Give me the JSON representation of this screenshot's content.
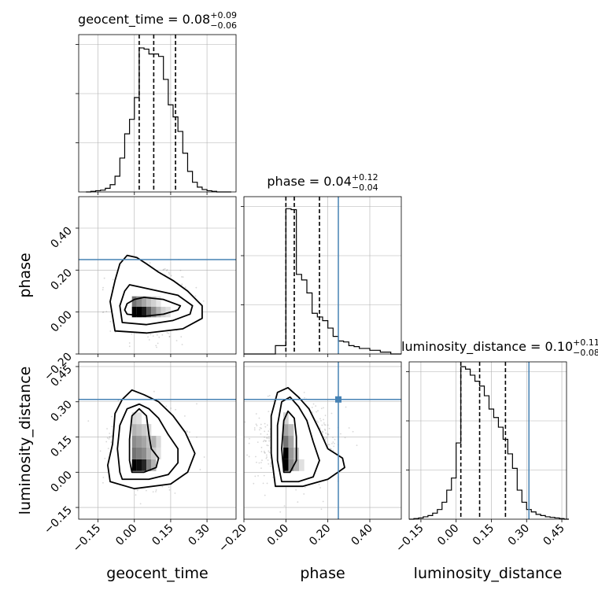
{
  "chart_data": {
    "type": "corner",
    "parameters": [
      "geocent_time",
      "phase",
      "luminosity_distance"
    ],
    "truth_color": "#4682b4",
    "marginals": [
      {
        "parameter": "geocent_time",
        "title_name": "geocent_time",
        "title_value": "0.08",
        "title_plus": "+0.09",
        "title_minus": "−0.06",
        "quantiles": [
          0.02,
          0.08,
          0.17
        ],
        "truth": null,
        "bin_edges": [
          -0.2,
          -0.18,
          -0.16,
          -0.14,
          -0.12,
          -0.1,
          -0.08,
          -0.06,
          -0.04,
          -0.02,
          0.0,
          0.02,
          0.04,
          0.06,
          0.08,
          0.1,
          0.12,
          0.14,
          0.16,
          0.18,
          0.2,
          0.22,
          0.24,
          0.26,
          0.28,
          0.3,
          0.32,
          0.34,
          0.36,
          0.38,
          0.4
        ],
        "counts": [
          0,
          0.5,
          1,
          1.5,
          3,
          6,
          13,
          28,
          48,
          60,
          78,
          119,
          118,
          114,
          114,
          112,
          93,
          72,
          62,
          50,
          32,
          17,
          8,
          4,
          2,
          1,
          0.5,
          0,
          0,
          0
        ],
        "ylim": [
          0,
          130
        ],
        "xlim": [
          -0.23,
          0.42
        ],
        "xticks": [
          -0.15,
          0.0,
          0.15,
          0.3
        ]
      },
      {
        "parameter": "phase",
        "title_name": "phase",
        "title_value": "0.04",
        "title_plus": "+0.12",
        "title_minus": "−0.04",
        "quantiles": [
          0.0,
          0.04,
          0.16
        ],
        "truth": 0.25,
        "bin_edges": [
          -0.2,
          -0.15,
          -0.1,
          -0.05,
          0.0,
          0.025,
          0.05,
          0.075,
          0.1,
          0.125,
          0.15,
          0.175,
          0.2,
          0.225,
          0.25,
          0.275,
          0.3,
          0.325,
          0.35,
          0.4,
          0.45,
          0.5,
          0.55
        ],
        "counts": [
          0,
          0,
          0,
          9,
          157,
          156,
          86,
          80,
          66,
          44,
          40,
          36,
          28,
          19,
          14,
          13,
          9,
          8,
          6,
          4,
          2,
          0
        ],
        "ylim": [
          0,
          170
        ],
        "xlim": [
          -0.2,
          0.55
        ],
        "xticks": [
          -0.2,
          0.0,
          0.2,
          0.4
        ]
      },
      {
        "parameter": "luminosity_distance",
        "title_name": "luminosity_distance",
        "title_value": "0.10",
        "title_plus": "+0.11",
        "title_minus": "−0.08",
        "quantiles": [
          0.02,
          0.1,
          0.21
        ],
        "truth": 0.31,
        "bin_edges": [
          -0.2,
          -0.18,
          -0.16,
          -0.14,
          -0.12,
          -0.1,
          -0.08,
          -0.06,
          -0.04,
          -0.02,
          0.0,
          0.02,
          0.04,
          0.06,
          0.08,
          0.1,
          0.12,
          0.14,
          0.16,
          0.18,
          0.2,
          0.22,
          0.24,
          0.26,
          0.28,
          0.3,
          0.32,
          0.34,
          0.36,
          0.38,
          0.4,
          0.42,
          0.44,
          0.46,
          0.48
        ],
        "counts": [
          0,
          0.5,
          1,
          2,
          3,
          5,
          8,
          14,
          24,
          34,
          63,
          126,
          124,
          119,
          114,
          110,
          102,
          91,
          84,
          76,
          66,
          54,
          42,
          24,
          14,
          8,
          6,
          4,
          3,
          2,
          1.5,
          1,
          0.5,
          0
        ],
        "ylim": [
          0,
          130
        ],
        "xlim": [
          -0.2,
          0.47
        ],
        "xticks": [
          -0.15,
          0.0,
          0.15,
          0.3,
          0.45
        ]
      }
    ],
    "joint": [
      {
        "x": "geocent_time",
        "y": "phase",
        "xlim": [
          -0.23,
          0.42
        ],
        "ylim": [
          -0.2,
          0.55
        ],
        "yticks": [
          -0.2,
          0.0,
          0.2,
          0.4
        ],
        "truth_y": 0.25,
        "contours": [
          [
            [
              -0.03,
              -0.01
            ],
            [
              0.04,
              -0.02
            ],
            [
              0.12,
              -0.01
            ],
            [
              0.18,
              0.01
            ],
            [
              0.19,
              0.03
            ],
            [
              0.12,
              0.06
            ],
            [
              0.04,
              0.07
            ],
            [
              0.0,
              0.06
            ],
            [
              -0.03,
              0.04
            ],
            [
              -0.04,
              0.01
            ]
          ],
          [
            [
              -0.05,
              -0.05
            ],
            [
              0.05,
              -0.06
            ],
            [
              0.16,
              -0.04
            ],
            [
              0.23,
              -0.01
            ],
            [
              0.24,
              0.03
            ],
            [
              0.18,
              0.08
            ],
            [
              0.1,
              0.1
            ],
            [
              0.02,
              0.12
            ],
            [
              -0.02,
              0.13
            ],
            [
              -0.04,
              0.1
            ],
            [
              -0.06,
              0.03
            ]
          ],
          [
            [
              -0.08,
              -0.09
            ],
            [
              0.05,
              -0.1
            ],
            [
              0.2,
              -0.08
            ],
            [
              0.28,
              -0.03
            ],
            [
              0.28,
              0.03
            ],
            [
              0.22,
              0.1
            ],
            [
              0.16,
              0.15
            ],
            [
              0.1,
              0.19
            ],
            [
              0.05,
              0.23
            ],
            [
              0.01,
              0.26
            ],
            [
              -0.03,
              0.27
            ],
            [
              -0.06,
              0.23
            ],
            [
              -0.08,
              0.15
            ],
            [
              -0.1,
              0.05
            ]
          ]
        ],
        "density": [
          {
            "x": 0.0,
            "y": 0.0,
            "v": 1.0
          },
          {
            "x": 0.02,
            "y": 0.0,
            "v": 1.0
          },
          {
            "x": 0.04,
            "y": 0.0,
            "v": 0.9
          },
          {
            "x": 0.06,
            "y": 0.0,
            "v": 0.65
          },
          {
            "x": 0.08,
            "y": 0.0,
            "v": 0.45
          },
          {
            "x": 0.1,
            "y": 0.0,
            "v": 0.3
          },
          {
            "x": 0.12,
            "y": 0.0,
            "v": 0.18
          },
          {
            "x": 0.14,
            "y": 0.0,
            "v": 0.12
          },
          {
            "x": 0.0,
            "y": 0.05,
            "v": 0.55
          },
          {
            "x": 0.02,
            "y": 0.05,
            "v": 0.45
          },
          {
            "x": 0.04,
            "y": 0.05,
            "v": 0.35
          },
          {
            "x": 0.06,
            "y": 0.05,
            "v": 0.25
          },
          {
            "x": 0.08,
            "y": 0.05,
            "v": 0.18
          },
          {
            "x": 0.1,
            "y": 0.05,
            "v": 0.1
          }
        ]
      },
      {
        "x": "geocent_time",
        "y": "luminosity_distance",
        "xlim": [
          -0.23,
          0.42
        ],
        "ylim": [
          -0.2,
          0.47
        ],
        "yticks": [
          -0.15,
          0.0,
          0.15,
          0.3,
          0.45
        ],
        "truth_y": 0.31,
        "contours": [
          [
            [
              -0.01,
              0.0
            ],
            [
              0.04,
              0.0
            ],
            [
              0.09,
              0.02
            ],
            [
              0.1,
              0.06
            ],
            [
              0.07,
              0.1
            ],
            [
              0.06,
              0.16
            ],
            [
              0.05,
              0.24
            ],
            [
              0.02,
              0.27
            ],
            [
              -0.01,
              0.24
            ],
            [
              -0.02,
              0.14
            ],
            [
              -0.02,
              0.05
            ]
          ],
          [
            [
              -0.05,
              -0.03
            ],
            [
              0.06,
              -0.03
            ],
            [
              0.14,
              -0.01
            ],
            [
              0.18,
              0.04
            ],
            [
              0.18,
              0.1
            ],
            [
              0.14,
              0.16
            ],
            [
              0.1,
              0.23
            ],
            [
              0.06,
              0.27
            ],
            [
              0.02,
              0.29
            ],
            [
              -0.03,
              0.27
            ],
            [
              -0.06,
              0.2
            ],
            [
              -0.07,
              0.1
            ],
            [
              -0.06,
              0.0
            ]
          ],
          [
            [
              -0.1,
              -0.04
            ],
            [
              0.0,
              -0.07
            ],
            [
              0.15,
              -0.05
            ],
            [
              0.22,
              0.0
            ],
            [
              0.25,
              0.08
            ],
            [
              0.21,
              0.17
            ],
            [
              0.16,
              0.24
            ],
            [
              0.1,
              0.3
            ],
            [
              0.04,
              0.33
            ],
            [
              -0.01,
              0.35
            ],
            [
              -0.05,
              0.31
            ],
            [
              -0.08,
              0.25
            ],
            [
              -0.09,
              0.12
            ],
            [
              -0.11,
              0.03
            ]
          ]
        ],
        "density": [
          {
            "x": 0.0,
            "y": 0.03,
            "v": 1.0
          },
          {
            "x": 0.02,
            "y": 0.03,
            "v": 0.95
          },
          {
            "x": 0.04,
            "y": 0.03,
            "v": 0.85
          },
          {
            "x": 0.06,
            "y": 0.03,
            "v": 0.5
          },
          {
            "x": 0.08,
            "y": 0.03,
            "v": 0.3
          },
          {
            "x": 0.0,
            "y": 0.08,
            "v": 0.55
          },
          {
            "x": 0.02,
            "y": 0.08,
            "v": 0.5
          },
          {
            "x": 0.04,
            "y": 0.08,
            "v": 0.45
          },
          {
            "x": 0.06,
            "y": 0.08,
            "v": 0.3
          },
          {
            "x": 0.08,
            "y": 0.08,
            "v": 0.2
          },
          {
            "x": 0.1,
            "y": 0.08,
            "v": 0.12
          },
          {
            "x": 0.0,
            "y": 0.13,
            "v": 0.45
          },
          {
            "x": 0.02,
            "y": 0.13,
            "v": 0.4
          },
          {
            "x": 0.04,
            "y": 0.13,
            "v": 0.35
          },
          {
            "x": 0.06,
            "y": 0.13,
            "v": 0.25
          },
          {
            "x": 0.08,
            "y": 0.13,
            "v": 0.3
          },
          {
            "x": 0.1,
            "y": 0.13,
            "v": 0.15
          },
          {
            "x": 0.0,
            "y": 0.18,
            "v": 0.3
          },
          {
            "x": 0.02,
            "y": 0.18,
            "v": 0.25
          },
          {
            "x": 0.04,
            "y": 0.18,
            "v": 0.2
          },
          {
            "x": 0.06,
            "y": 0.18,
            "v": 0.15
          },
          {
            "x": 0.0,
            "y": 0.23,
            "v": 0.15
          },
          {
            "x": 0.02,
            "y": 0.23,
            "v": 0.12
          }
        ]
      },
      {
        "x": "phase",
        "y": "luminosity_distance",
        "xlim": [
          -0.2,
          0.55
        ],
        "ylim": [
          -0.2,
          0.47
        ],
        "truth_x": 0.25,
        "truth_y": 0.31,
        "contours": [
          [
            [
              -0.01,
              0.0
            ],
            [
              0.02,
              0.0
            ],
            [
              0.05,
              0.05
            ],
            [
              0.05,
              0.15
            ],
            [
              0.04,
              0.23
            ],
            [
              0.01,
              0.26
            ],
            [
              -0.01,
              0.22
            ],
            [
              -0.02,
              0.1
            ]
          ],
          [
            [
              -0.02,
              -0.04
            ],
            [
              0.06,
              -0.04
            ],
            [
              0.13,
              -0.02
            ],
            [
              0.16,
              0.05
            ],
            [
              0.13,
              0.13
            ],
            [
              0.1,
              0.22
            ],
            [
              0.06,
              0.28
            ],
            [
              0.02,
              0.32
            ],
            [
              -0.02,
              0.3
            ],
            [
              -0.04,
              0.2
            ],
            [
              -0.04,
              0.05
            ]
          ],
          [
            [
              -0.05,
              -0.06
            ],
            [
              0.08,
              -0.06
            ],
            [
              0.2,
              -0.03
            ],
            [
              0.28,
              0.02
            ],
            [
              0.27,
              0.06
            ],
            [
              0.2,
              0.1
            ],
            [
              0.16,
              0.18
            ],
            [
              0.11,
              0.27
            ],
            [
              0.06,
              0.32
            ],
            [
              0.01,
              0.36
            ],
            [
              -0.04,
              0.34
            ],
            [
              -0.07,
              0.24
            ],
            [
              -0.07,
              0.08
            ]
          ]
        ],
        "density": [
          {
            "x": 0.0,
            "y": 0.03,
            "v": 1.0
          },
          {
            "x": 0.0,
            "y": 0.08,
            "v": 1.0
          },
          {
            "x": 0.025,
            "y": 0.03,
            "v": 0.45
          },
          {
            "x": 0.025,
            "y": 0.08,
            "v": 0.4
          },
          {
            "x": 0.0,
            "y": 0.13,
            "v": 0.55
          },
          {
            "x": 0.025,
            "y": 0.13,
            "v": 0.35
          },
          {
            "x": 0.05,
            "y": 0.03,
            "v": 0.3
          },
          {
            "x": 0.05,
            "y": 0.08,
            "v": 0.22
          },
          {
            "x": 0.0,
            "y": 0.18,
            "v": 0.35
          },
          {
            "x": 0.025,
            "y": 0.18,
            "v": 0.25
          },
          {
            "x": 0.0,
            "y": 0.23,
            "v": 0.18
          },
          {
            "x": 0.075,
            "y": 0.03,
            "v": 0.12
          }
        ]
      }
    ]
  }
}
